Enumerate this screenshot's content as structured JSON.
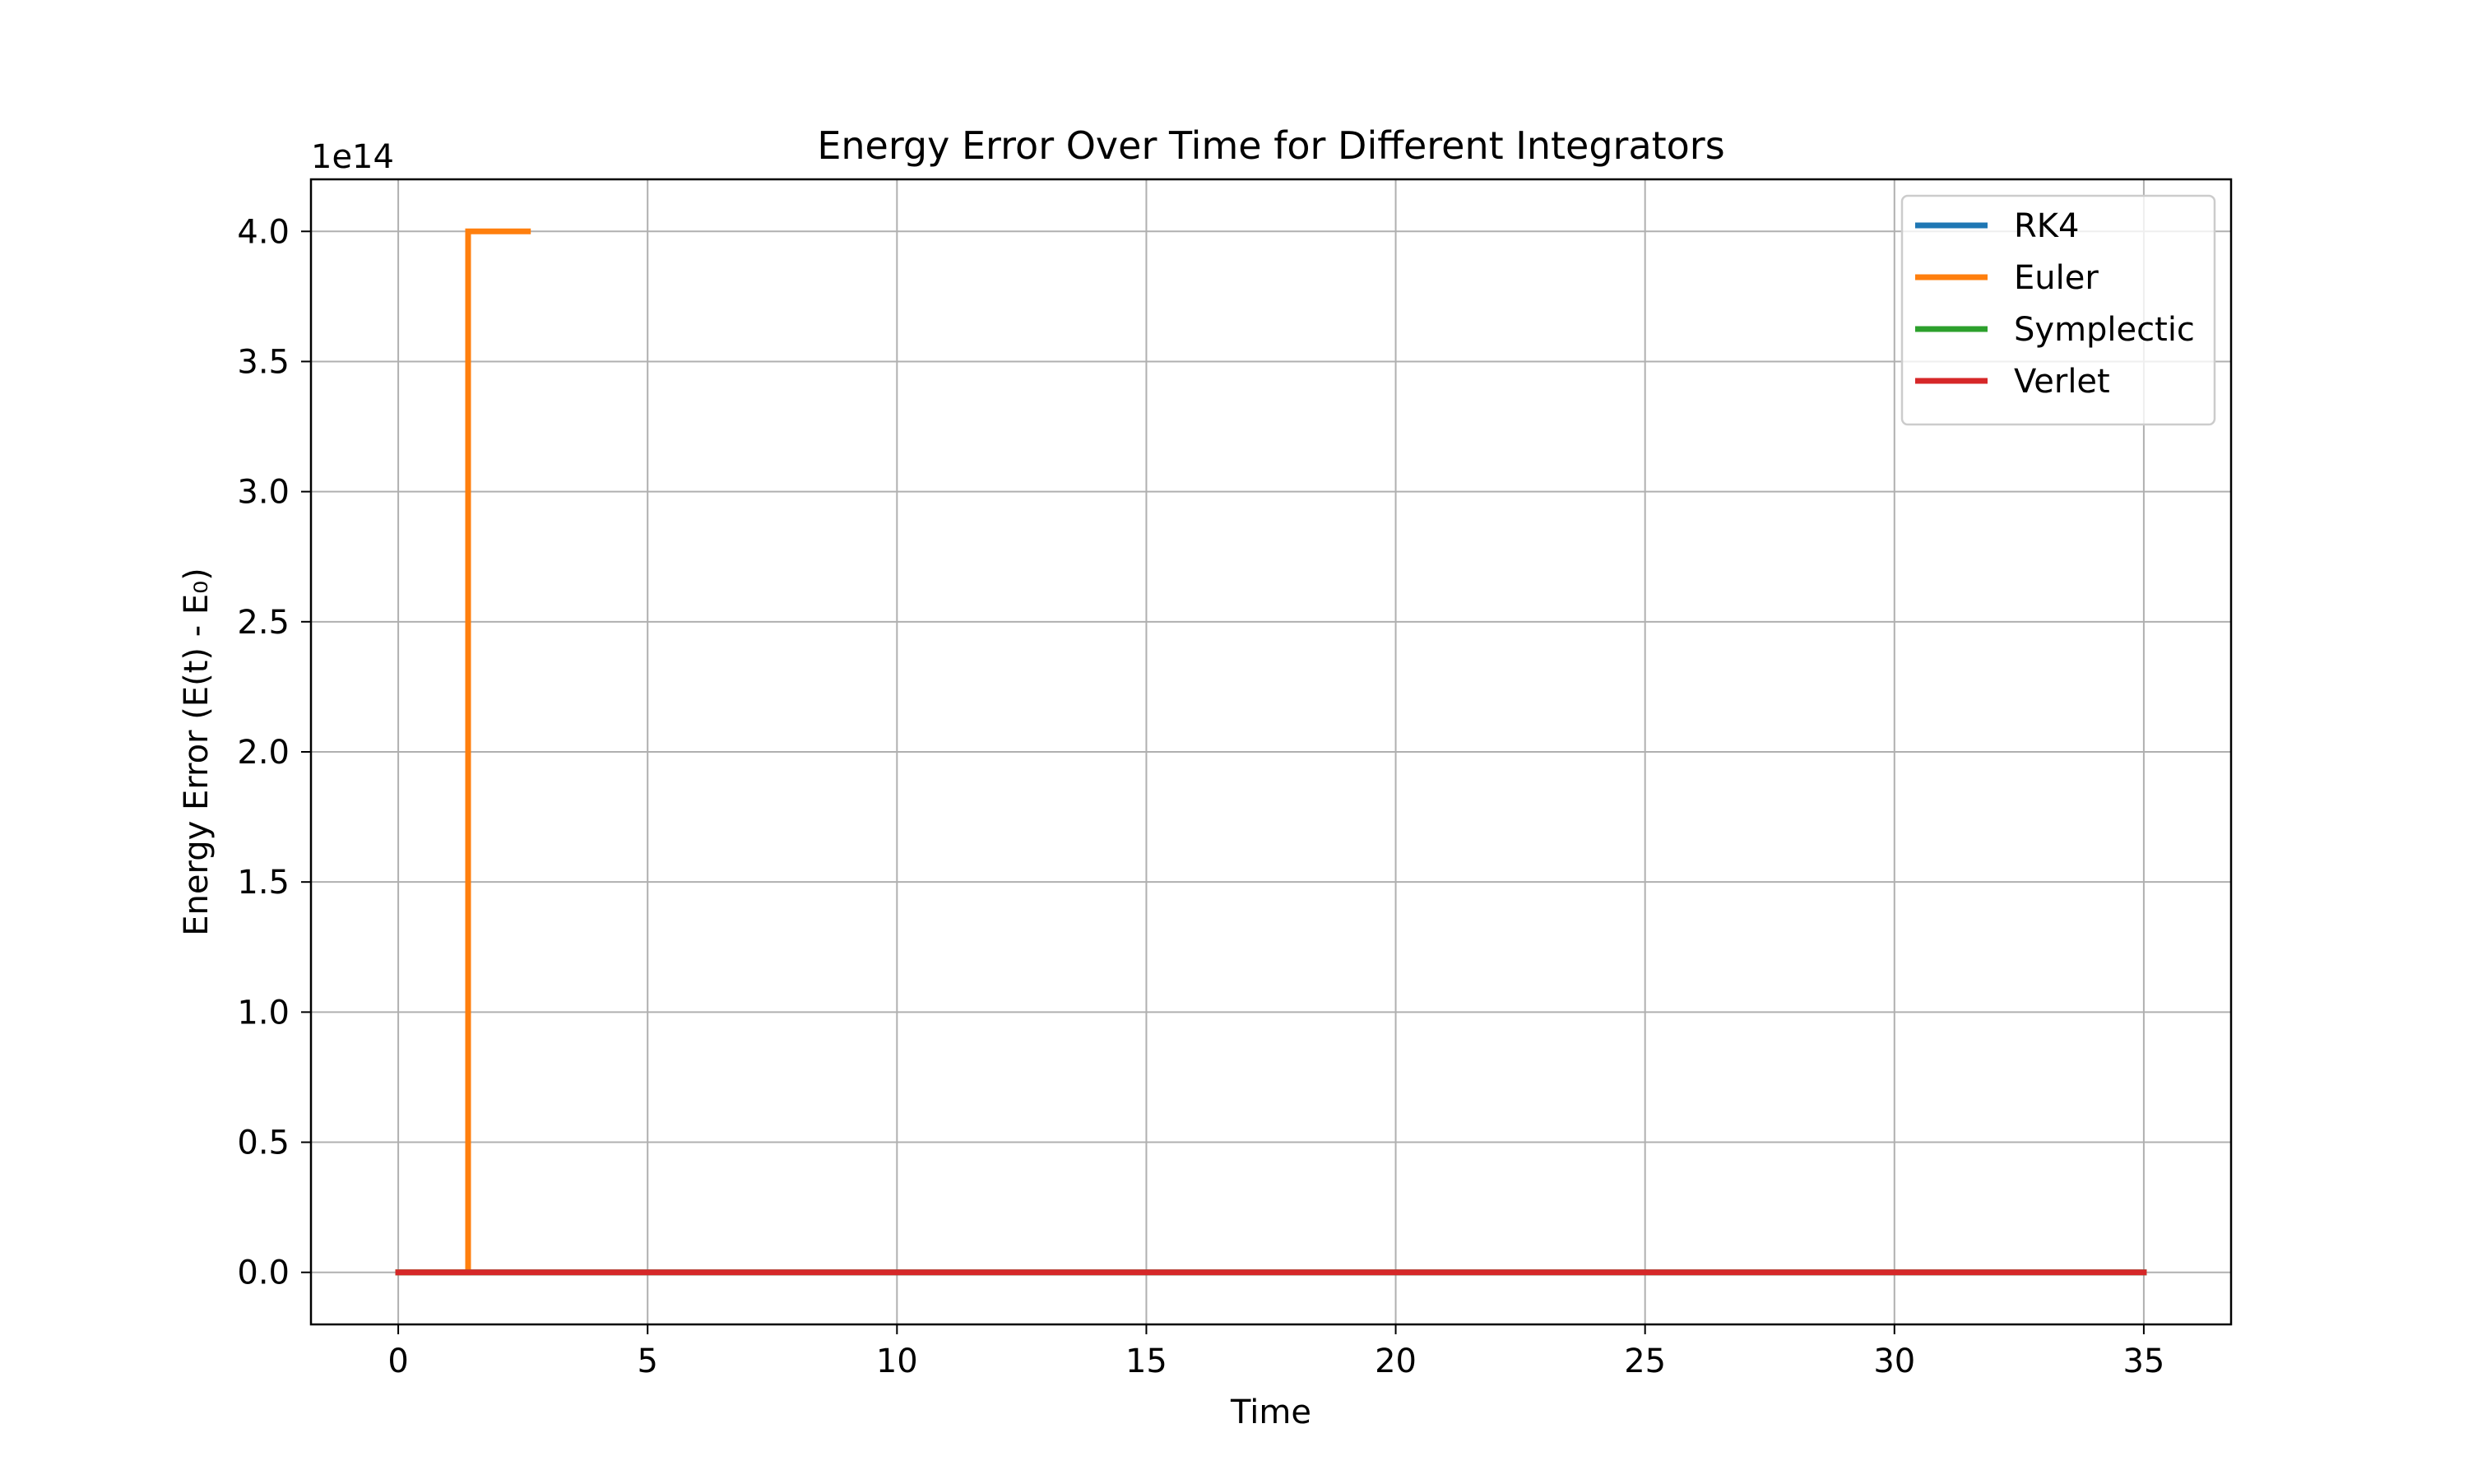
{
  "chart_data": {
    "type": "line",
    "title": "Energy Error Over Time for Different Integrators",
    "xlabel": "Time",
    "ylabel": "Energy Error (E(t) - E₀)",
    "y_offset_label": "1e14",
    "xlim": [
      -1.75,
      36.75
    ],
    "ylim": [
      -0.2,
      4.2
    ],
    "y_scale_factor": 100000000000000.0,
    "x_ticks": [
      0,
      5,
      10,
      15,
      20,
      25,
      30,
      35
    ],
    "x_tick_labels": [
      "0",
      "5",
      "10",
      "15",
      "20",
      "25",
      "30",
      "35"
    ],
    "y_ticks": [
      0,
      0.5,
      1,
      1.5,
      2,
      2.5,
      3,
      3.5,
      4
    ],
    "y_tick_labels": [
      "0.0",
      "0.5",
      "1.0",
      "1.5",
      "2.0",
      "2.5",
      "3.0",
      "3.5",
      "4.0"
    ],
    "grid": true,
    "legend_position": "top-right",
    "series": [
      {
        "name": "RK4",
        "color": "#1f77b4",
        "x": [
          0,
          35
        ],
        "y": [
          0,
          0
        ]
      },
      {
        "name": "Euler",
        "color": "#ff7f0e",
        "x": [
          0,
          1.4,
          1.4,
          2.6
        ],
        "y": [
          0,
          0,
          4.0,
          4.0
        ]
      },
      {
        "name": "Symplectic",
        "color": "#2ca02c",
        "x": [
          0,
          35
        ],
        "y": [
          0,
          0
        ]
      },
      {
        "name": "Verlet",
        "color": "#d62728",
        "x": [
          0,
          35
        ],
        "y": [
          0,
          0
        ]
      }
    ]
  }
}
